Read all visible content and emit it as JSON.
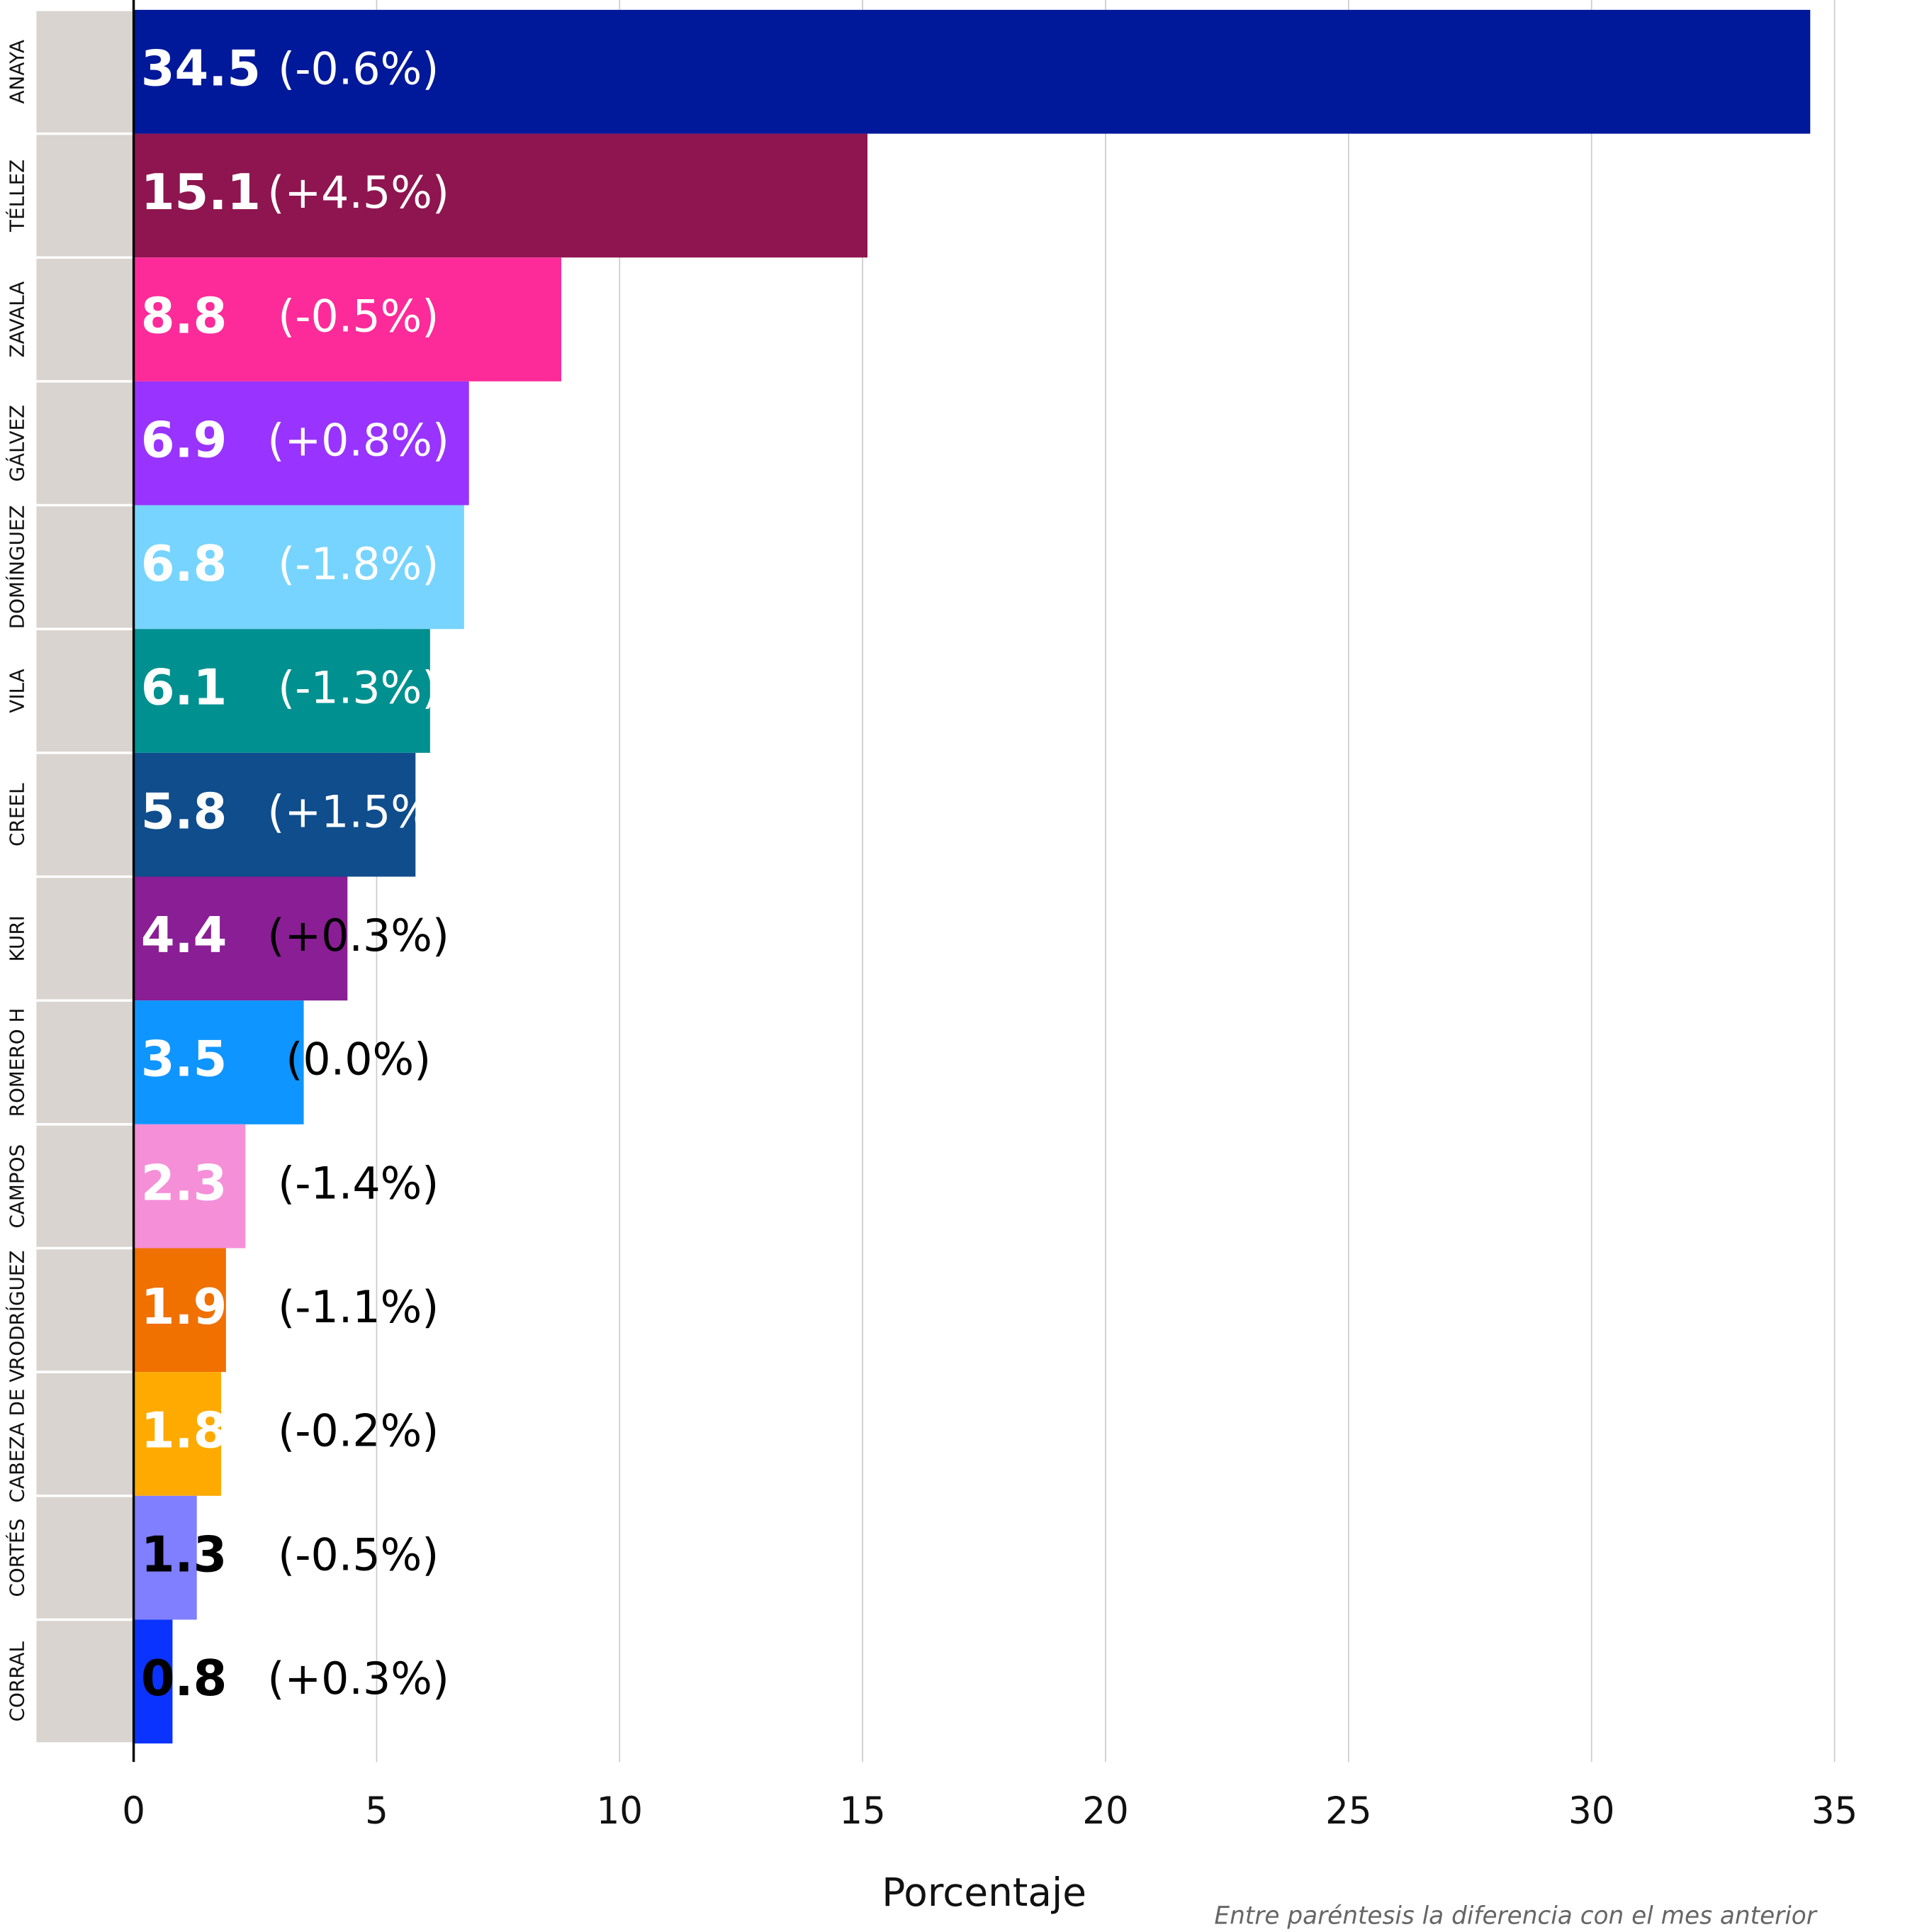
{
  "chart_data": {
    "type": "hbar",
    "categories": [
      "ANAYA",
      "TÉLLEZ",
      "ZAVALA",
      "GÁLVEZ",
      "DOMÍNGUEZ",
      "VILA",
      "CREEL",
      "KURI",
      "ROMERO H",
      "CAMPOS",
      "RODRÍGUEZ",
      "CABEZA DE V.",
      "CORTÉS",
      "CORRAL"
    ],
    "values": [
      34.5,
      15.1,
      8.8,
      6.9,
      6.8,
      6.1,
      5.8,
      4.4,
      3.5,
      2.3,
      1.9,
      1.8,
      1.3,
      0.8
    ],
    "change_labels": [
      "(-0.6%)",
      "(+4.5%)",
      "(-0.5%)",
      "(+0.8%)",
      "(-1.8%)",
      "(-1.3%)",
      "(+1.5%)",
      "(+0.3%)",
      "(0.0%)",
      "(-1.4%)",
      "(-1.1%)",
      "(-0.2%)",
      "(-0.5%)",
      "(+0.3%)"
    ],
    "colors": [
      "#00189a",
      "#8e1550",
      "#fc2b99",
      "#9933ff",
      "#77d4ff",
      "#009090",
      "#0f4d8c",
      "#8a1e94",
      "#0f95ff",
      "#f58fd8",
      "#f07000",
      "#ffaa00",
      "#7f7fff",
      "#0b33ff"
    ],
    "value_label_colors": [
      "#fff",
      "#fff",
      "#fff",
      "#fff",
      "#fff",
      "#fff",
      "#fff",
      "#fff",
      "#fff",
      "#fff",
      "#fff",
      "#fff",
      "#000",
      "#000"
    ],
    "change_label_colors": [
      "#fff",
      "#fff",
      "#fff",
      "#fff",
      "#fff",
      "#fff",
      "#fff",
      "#000",
      "#000",
      "#000",
      "#000",
      "#000",
      "#000",
      "#000"
    ],
    "xlabel": "Porcentaje",
    "note": "Entre paréntesis la diferencia con el mes anterior",
    "xlim": [
      0,
      35
    ],
    "xticks": [
      0,
      5,
      10,
      15,
      20,
      25,
      30,
      35
    ],
    "grid": true
  }
}
